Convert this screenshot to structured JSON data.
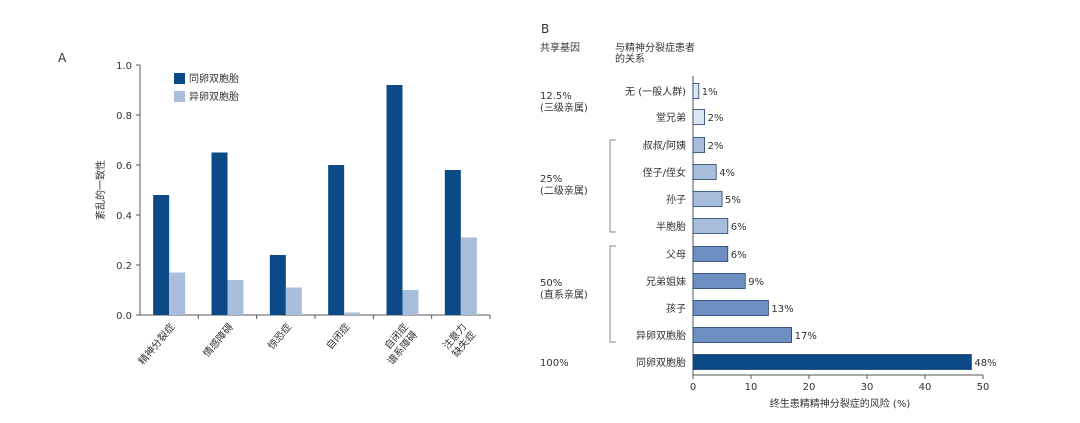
{
  "panel_a": {
    "label": "A",
    "colors": {
      "mz": "#0b4a86",
      "dz": "#a9bedd"
    },
    "chart_data": {
      "type": "bar",
      "ylabel": "紊乱的一致性",
      "ylim": [
        0,
        1.0
      ],
      "yticks": [
        "0.0",
        "0.2",
        "0.4",
        "0.6",
        "0.8",
        "1.0"
      ],
      "categories": [
        "精神分裂症",
        "情感障碍",
        "惊恐症",
        "自闭症",
        "自闭症\n谱系障碍",
        "注意力\n缺失症"
      ],
      "series": [
        {
          "name": "同卵双胞胎",
          "values": [
            0.48,
            0.65,
            0.24,
            0.6,
            0.92,
            0.58
          ]
        },
        {
          "name": "异卵双胞胎",
          "values": [
            0.17,
            0.14,
            0.11,
            0.01,
            0.1,
            0.31
          ]
        }
      ],
      "legend": "top-left"
    }
  },
  "panel_b": {
    "label": "B",
    "header_shared": "共享基因",
    "header_relation": "与精神分裂症患者\n的关系",
    "colors": {
      "low": "#dce6f2",
      "mid": "#a9bedd",
      "high": "#6e8fc2",
      "top": "#0b4a86"
    },
    "groups": [
      {
        "percent": "12.5%",
        "degree": "(三级亲属)"
      },
      {
        "percent": "25%",
        "degree": "(二级亲属)"
      },
      {
        "percent": "50%",
        "degree": "(直系亲属)"
      },
      {
        "percent": "100%",
        "degree": ""
      }
    ],
    "chart_data": {
      "type": "bar",
      "orientation": "horizontal",
      "xlabel": "终生患精精神分裂症的风险 (%)",
      "xlim": [
        0,
        50
      ],
      "xticks": [
        "0",
        "10",
        "20",
        "30",
        "40",
        "50"
      ],
      "categories": [
        "无 (一般人群)",
        "堂兄弟",
        "叔叔/阿姨",
        "侄子/侄女",
        "孙子",
        "半胞胎",
        "父母",
        "兄弟姐妹",
        "孩子",
        "异卵双胞胎",
        "同卵双胞胎"
      ],
      "values": [
        1,
        2,
        2,
        4,
        5,
        6,
        6,
        9,
        13,
        17,
        48
      ],
      "value_labels": [
        "1%",
        "2%",
        "2%",
        "4%",
        "5%",
        "6%",
        "6%",
        "9%",
        "13%",
        "17%",
        "48%"
      ],
      "shades": [
        "low",
        "low",
        "mid",
        "mid",
        "mid",
        "mid",
        "high",
        "high",
        "high",
        "high",
        "top"
      ]
    }
  }
}
